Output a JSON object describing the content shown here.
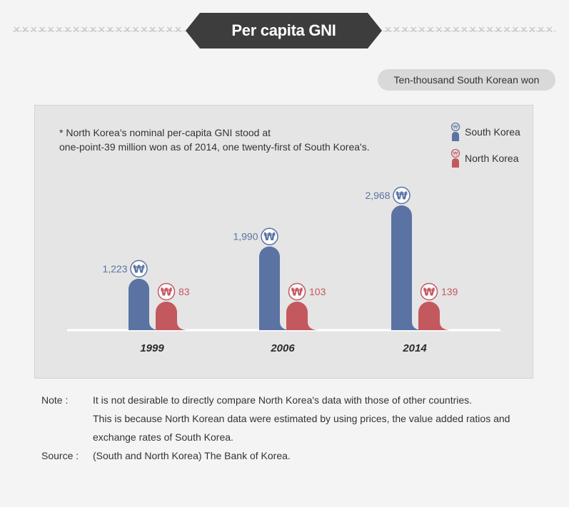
{
  "header": {
    "title": "Per capita GNI"
  },
  "unit_label": "Ten-thousand South Korean won",
  "footnote": [
    "* North Korea's nominal per-capita GNI stood at",
    "one-point-39 million won as of 2014, one twenty-first of South Korea's."
  ],
  "legend": [
    {
      "name": "South Korea",
      "color": "#5a73a3"
    },
    {
      "name": "North Korea",
      "color": "#c4585f"
    }
  ],
  "chart_data": {
    "type": "bar",
    "title": "Per capita GNI",
    "unit": "Ten-thousand South Korean won",
    "categories": [
      "1999",
      "2006",
      "2014"
    ],
    "series": [
      {
        "name": "South Korea",
        "values": [
          1223,
          1990,
          2968
        ],
        "labels": [
          "1,223",
          "1,990",
          "2,968"
        ],
        "color": "#5a73a3"
      },
      {
        "name": "North Korea",
        "values": [
          83,
          103,
          139
        ],
        "labels": [
          "83",
          "103",
          "139"
        ],
        "color": "#c4585f"
      }
    ],
    "currency_symbol": "₩",
    "ylim": [
      0,
      2968
    ]
  },
  "notes": {
    "note_key": "Note :",
    "note_lines": [
      "It is not desirable to directly compare North Korea's data with those of other countries.",
      "This is because North Korean data were estimated by using prices, the value added ratios and",
      "exchange rates of South Korea."
    ],
    "source_key": "Source :",
    "source_text": "(South and North Korea) The Bank of Korea."
  }
}
